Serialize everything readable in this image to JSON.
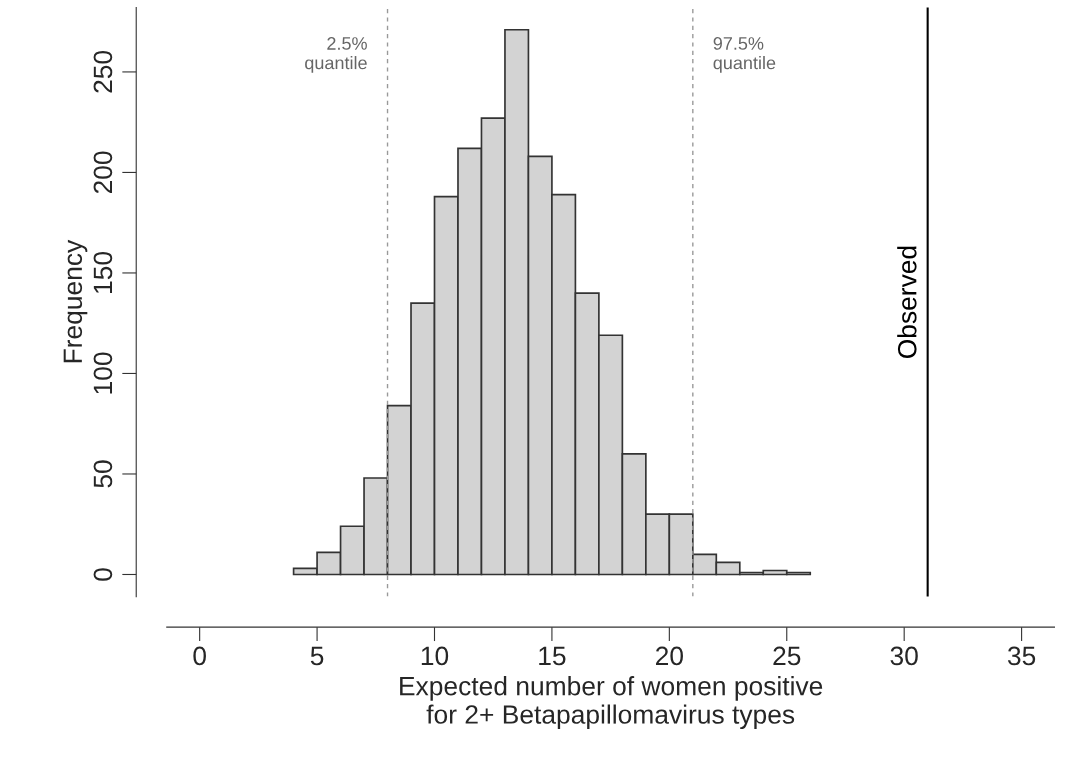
{
  "chart_data": {
    "type": "histogram",
    "xlabel": "Expected number of women positive\nfor 2+ Betapapillomavirus types",
    "ylabel": "Frequency",
    "bins": [
      4,
      5,
      6,
      7,
      8,
      9,
      10,
      11,
      12,
      13,
      14,
      15,
      16,
      17,
      18,
      19,
      20,
      21,
      22,
      23,
      24,
      25,
      26
    ],
    "values": [
      3,
      11,
      24,
      48,
      84,
      135,
      188,
      212,
      227,
      271,
      208,
      189,
      140,
      119,
      60,
      30,
      30,
      10,
      6,
      1,
      2,
      1
    ],
    "color": "#d3d3d3",
    "xlim": [
      -1.4,
      36.4
    ],
    "ylim": [
      -11,
      282
    ],
    "xticks": [
      0,
      5,
      10,
      15,
      20,
      25,
      30,
      35
    ],
    "yticks": [
      0,
      50,
      100,
      150,
      200,
      250
    ],
    "grid": false,
    "ref_lines": [
      {
        "axis": "x",
        "value": 8,
        "label": "2.5%\nquantile",
        "color": "#999999",
        "line_style": "dashed"
      },
      {
        "axis": "x",
        "value": 21,
        "label": "97.5%\nquantile",
        "color": "#999999",
        "line_style": "dashed"
      },
      {
        "axis": "x",
        "value": 31,
        "label": "Observed",
        "color": "#000000",
        "line_style": "solid"
      }
    ]
  }
}
